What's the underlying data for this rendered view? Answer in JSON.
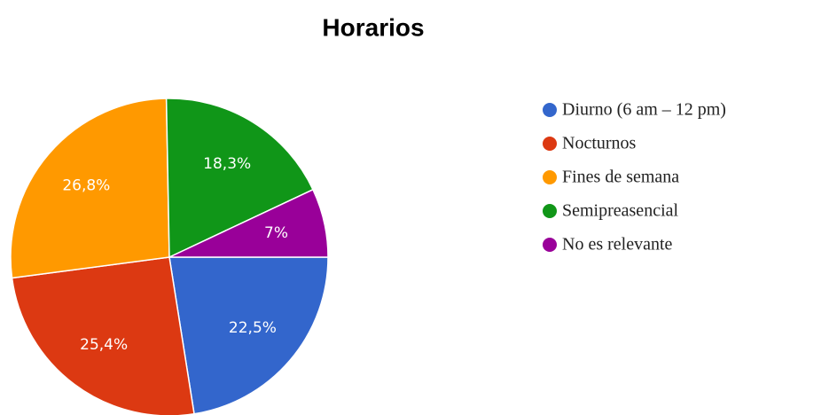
{
  "chart_data": {
    "type": "pie",
    "title": "Horarios",
    "categories": [
      "Diurno (6 am – 12 pm)",
      "Nocturnos",
      "Fines de semana",
      "Semipreasencial",
      "No es relevante"
    ],
    "values": [
      22.5,
      25.4,
      26.8,
      18.3,
      7
    ],
    "value_labels": [
      "22,5%",
      "25,4%",
      "26,8%",
      "18,3%",
      "7%"
    ],
    "colors": [
      "#3366cc",
      "#dc3912",
      "#ff9900",
      "#109618",
      "#990099"
    ],
    "legend": "right"
  }
}
